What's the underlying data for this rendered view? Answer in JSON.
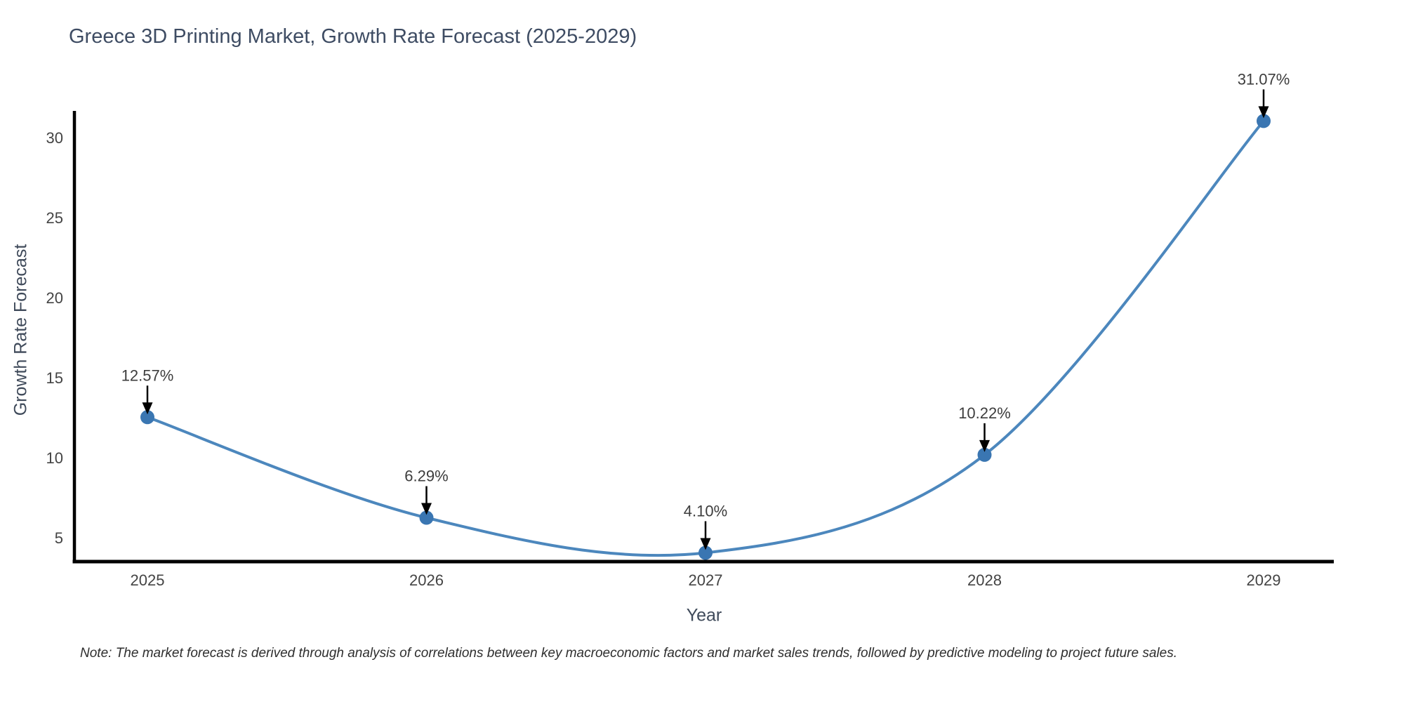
{
  "title": "Greece 3D Printing Market, Growth Rate Forecast (2025-2029)",
  "note": "Note: The market forecast is derived through analysis of correlations between key macroeconomic factors and market sales trends, followed by predictive modeling to project future sales.",
  "chart_data": {
    "type": "line",
    "title": "Greece 3D Printing Market, Growth Rate Forecast (2025-2029)",
    "categories": [
      "2025",
      "2026",
      "2027",
      "2028",
      "2029"
    ],
    "values": [
      12.57,
      6.29,
      4.1,
      10.22,
      31.07
    ],
    "point_labels": [
      "12.57%",
      "6.29%",
      "4.10%",
      "10.22%",
      "31.07%"
    ],
    "xlabel": "Year",
    "ylabel": "Growth Rate Forecast",
    "yticks": [
      5,
      10,
      15,
      20,
      25,
      30
    ],
    "ylim": [
      3.55,
      31.7
    ],
    "line_shape": "spline",
    "grid": false,
    "legend": "none",
    "annotation_style": "value label above point with downward black arrow",
    "colors": {
      "line": "#4c87bd",
      "marker": "#3a76b2",
      "axis": "#000000",
      "arrow": "#000000",
      "tick_label": "#444444",
      "title": "#3e4c63",
      "axis_title": "#3f4a5a",
      "annotation_text": "#3d3d3d",
      "note_text": "#2e2e2e",
      "background": "#ffffff"
    }
  }
}
